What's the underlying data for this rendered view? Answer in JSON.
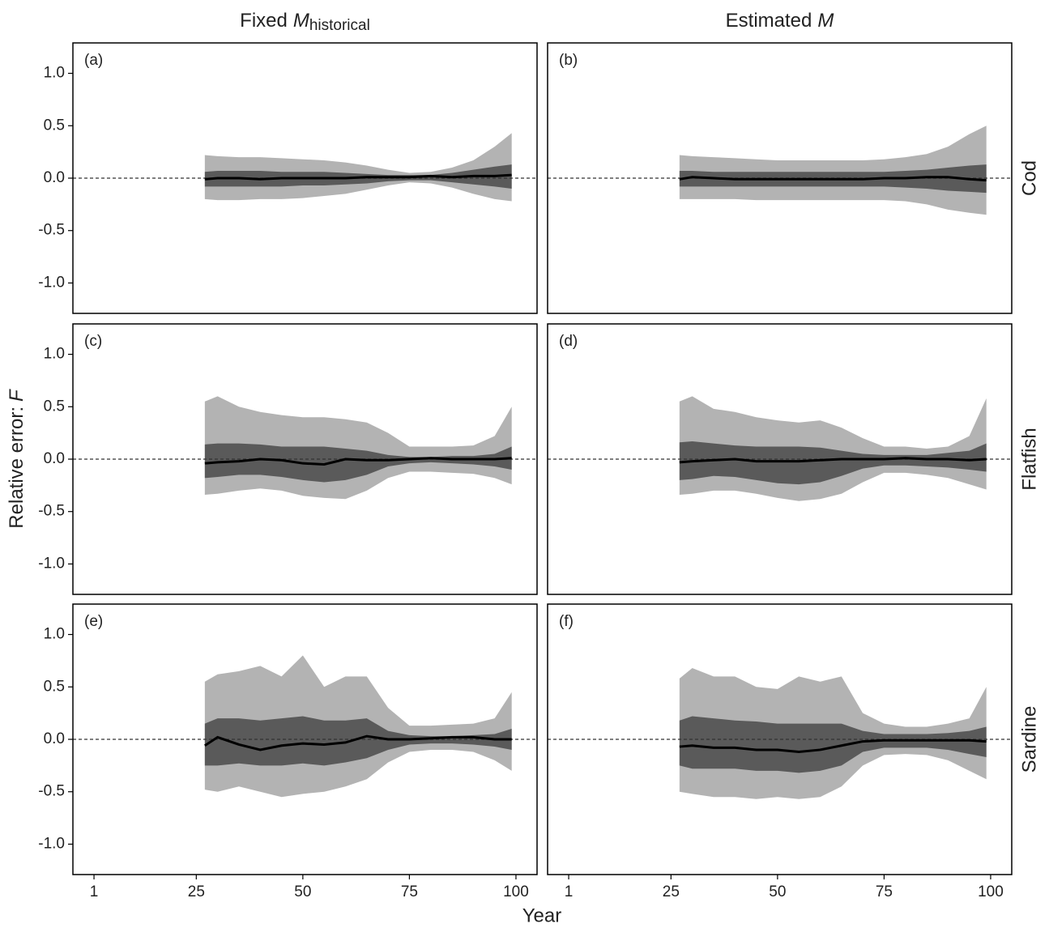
{
  "column_titles": [
    {
      "text": "Fixed",
      "var": "M",
      "sub": "historical"
    },
    {
      "text": "Estimated",
      "var": "M"
    }
  ],
  "row_labels": [
    "Cod",
    "Flatfish",
    "Sardine"
  ],
  "y_label": {
    "text": "Relative error:",
    "var": "F"
  },
  "x_label": "Year",
  "axes": {
    "xlim": [
      -3.95,
      104.95
    ],
    "xticks": [
      1,
      25,
      50,
      75,
      100
    ],
    "ylim": [
      -1.29,
      1.29
    ],
    "yticks": [
      {
        "value": -1,
        "label": "-1.0"
      },
      {
        "value": -0.5,
        "label": "-0.5"
      },
      {
        "value": 0,
        "label": "0.0"
      },
      {
        "value": 0.5,
        "label": "0.5"
      },
      {
        "value": 1,
        "label": "1.0"
      }
    ],
    "reference_line": 0
  },
  "chart_data": [
    {
      "type": "band",
      "label": "(a)",
      "x": [
        27,
        30,
        35,
        40,
        45,
        50,
        55,
        60,
        65,
        70,
        75,
        80,
        85,
        90,
        95,
        99
      ],
      "bands": [
        {
          "color": "#b3b3b3",
          "upper": [
            0.22,
            0.21,
            0.2,
            0.2,
            0.19,
            0.18,
            0.17,
            0.15,
            0.12,
            0.08,
            0.05,
            0.06,
            0.1,
            0.17,
            0.3,
            0.43
          ],
          "lower": [
            -0.2,
            -0.21,
            -0.21,
            -0.2,
            -0.2,
            -0.19,
            -0.17,
            -0.15,
            -0.11,
            -0.07,
            -0.04,
            -0.05,
            -0.09,
            -0.15,
            -0.2,
            -0.22
          ]
        },
        {
          "color": "#5a5a5a",
          "upper": [
            0.06,
            0.07,
            0.07,
            0.07,
            0.06,
            0.06,
            0.06,
            0.05,
            0.04,
            0.03,
            0.03,
            0.03,
            0.05,
            0.08,
            0.11,
            0.13
          ],
          "lower": [
            -0.08,
            -0.08,
            -0.08,
            -0.08,
            -0.08,
            -0.07,
            -0.07,
            -0.06,
            -0.05,
            -0.03,
            -0.02,
            -0.02,
            -0.04,
            -0.06,
            -0.08,
            -0.1
          ]
        }
      ],
      "line": {
        "color": "#000000",
        "values": [
          -0.01,
          0,
          0,
          -0.01,
          0,
          0,
          0,
          0,
          0.01,
          0.01,
          0.01,
          0.02,
          0.01,
          0.02,
          0.02,
          0.03
        ]
      }
    },
    {
      "type": "band",
      "label": "(b)",
      "x": [
        27,
        30,
        35,
        40,
        45,
        50,
        55,
        60,
        65,
        70,
        75,
        80,
        85,
        90,
        95,
        99
      ],
      "bands": [
        {
          "color": "#b3b3b3",
          "upper": [
            0.22,
            0.21,
            0.2,
            0.19,
            0.18,
            0.17,
            0.17,
            0.17,
            0.17,
            0.17,
            0.18,
            0.2,
            0.23,
            0.3,
            0.42,
            0.5
          ],
          "lower": [
            -0.2,
            -0.2,
            -0.2,
            -0.2,
            -0.21,
            -0.21,
            -0.21,
            -0.21,
            -0.21,
            -0.21,
            -0.21,
            -0.22,
            -0.25,
            -0.3,
            -0.33,
            -0.35
          ]
        },
        {
          "color": "#5a5a5a",
          "upper": [
            0.07,
            0.07,
            0.06,
            0.06,
            0.06,
            0.06,
            0.06,
            0.06,
            0.06,
            0.06,
            0.06,
            0.07,
            0.08,
            0.1,
            0.12,
            0.13
          ],
          "lower": [
            -0.08,
            -0.08,
            -0.08,
            -0.08,
            -0.08,
            -0.08,
            -0.08,
            -0.08,
            -0.08,
            -0.08,
            -0.08,
            -0.09,
            -0.1,
            -0.12,
            -0.13,
            -0.14
          ]
        }
      ],
      "line": {
        "color": "#000000",
        "values": [
          -0.01,
          0.01,
          0,
          -0.01,
          -0.01,
          -0.01,
          -0.01,
          -0.01,
          -0.01,
          -0.01,
          0,
          0,
          0.01,
          0.01,
          -0.01,
          -0.02
        ]
      }
    },
    {
      "type": "band",
      "label": "(c)",
      "x": [
        27,
        30,
        35,
        40,
        45,
        50,
        55,
        60,
        65,
        70,
        75,
        80,
        85,
        90,
        95,
        99
      ],
      "bands": [
        {
          "color": "#b3b3b3",
          "upper": [
            0.55,
            0.6,
            0.5,
            0.45,
            0.42,
            0.4,
            0.4,
            0.38,
            0.35,
            0.25,
            0.12,
            0.12,
            0.12,
            0.13,
            0.22,
            0.5
          ],
          "lower": [
            -0.34,
            -0.33,
            -0.3,
            -0.28,
            -0.3,
            -0.35,
            -0.37,
            -0.38,
            -0.3,
            -0.18,
            -0.12,
            -0.12,
            -0.13,
            -0.14,
            -0.18,
            -0.24
          ]
        },
        {
          "color": "#5a5a5a",
          "upper": [
            0.14,
            0.15,
            0.15,
            0.14,
            0.12,
            0.12,
            0.12,
            0.1,
            0.08,
            0.04,
            0.02,
            0.02,
            0.03,
            0.03,
            0.05,
            0.12
          ],
          "lower": [
            -0.18,
            -0.17,
            -0.15,
            -0.15,
            -0.17,
            -0.2,
            -0.22,
            -0.2,
            -0.15,
            -0.07,
            -0.04,
            -0.03,
            -0.04,
            -0.05,
            -0.07,
            -0.1
          ]
        }
      ],
      "line": {
        "color": "#000000",
        "values": [
          -0.04,
          -0.03,
          -0.02,
          0,
          -0.01,
          -0.04,
          -0.05,
          0,
          -0.01,
          -0.01,
          0,
          0.01,
          0,
          0,
          0,
          0.01
        ]
      }
    },
    {
      "type": "band",
      "label": "(d)",
      "x": [
        27,
        30,
        35,
        40,
        45,
        50,
        55,
        60,
        65,
        70,
        75,
        80,
        85,
        90,
        95,
        99
      ],
      "bands": [
        {
          "color": "#b3b3b3",
          "upper": [
            0.55,
            0.6,
            0.48,
            0.45,
            0.4,
            0.37,
            0.35,
            0.37,
            0.3,
            0.2,
            0.12,
            0.12,
            0.1,
            0.12,
            0.22,
            0.58
          ],
          "lower": [
            -0.34,
            -0.33,
            -0.3,
            -0.3,
            -0.33,
            -0.37,
            -0.4,
            -0.38,
            -0.33,
            -0.22,
            -0.13,
            -0.13,
            -0.15,
            -0.18,
            -0.24,
            -0.29
          ]
        },
        {
          "color": "#5a5a5a",
          "upper": [
            0.16,
            0.17,
            0.15,
            0.13,
            0.12,
            0.12,
            0.12,
            0.11,
            0.08,
            0.05,
            0.04,
            0.04,
            0.04,
            0.06,
            0.08,
            0.15
          ],
          "lower": [
            -0.2,
            -0.19,
            -0.16,
            -0.17,
            -0.2,
            -0.23,
            -0.24,
            -0.22,
            -0.16,
            -0.09,
            -0.06,
            -0.06,
            -0.07,
            -0.08,
            -0.1,
            -0.12
          ]
        }
      ],
      "line": {
        "color": "#000000",
        "values": [
          -0.03,
          -0.02,
          -0.01,
          0,
          -0.02,
          -0.02,
          -0.02,
          -0.01,
          0,
          0,
          0,
          0.01,
          0,
          0,
          -0.01,
          0
        ]
      }
    },
    {
      "type": "band",
      "label": "(e)",
      "x": [
        27,
        30,
        35,
        40,
        45,
        50,
        55,
        60,
        65,
        70,
        75,
        80,
        85,
        90,
        95,
        99
      ],
      "bands": [
        {
          "color": "#b3b3b3",
          "upper": [
            0.55,
            0.62,
            0.65,
            0.7,
            0.6,
            0.8,
            0.5,
            0.6,
            0.6,
            0.3,
            0.13,
            0.13,
            0.14,
            0.15,
            0.2,
            0.45
          ],
          "lower": [
            -0.48,
            -0.5,
            -0.45,
            -0.5,
            -0.55,
            -0.52,
            -0.5,
            -0.45,
            -0.38,
            -0.22,
            -0.12,
            -0.1,
            -0.1,
            -0.12,
            -0.2,
            -0.3
          ]
        },
        {
          "color": "#5a5a5a",
          "upper": [
            0.15,
            0.2,
            0.2,
            0.18,
            0.2,
            0.22,
            0.18,
            0.18,
            0.2,
            0.08,
            0.04,
            0.03,
            0.03,
            0.04,
            0.05,
            0.1
          ],
          "lower": [
            -0.25,
            -0.25,
            -0.23,
            -0.25,
            -0.25,
            -0.23,
            -0.25,
            -0.22,
            -0.18,
            -0.1,
            -0.05,
            -0.04,
            -0.04,
            -0.05,
            -0.07,
            -0.1
          ]
        }
      ],
      "line": {
        "color": "#000000",
        "values": [
          -0.06,
          0.02,
          -0.05,
          -0.1,
          -0.06,
          -0.04,
          -0.05,
          -0.03,
          0.03,
          0,
          0,
          0.01,
          0.02,
          0.02,
          0,
          0
        ]
      }
    },
    {
      "type": "band",
      "label": "(f)",
      "x": [
        27,
        30,
        35,
        40,
        45,
        50,
        55,
        60,
        65,
        70,
        75,
        80,
        85,
        90,
        95,
        99
      ],
      "bands": [
        {
          "color": "#b3b3b3",
          "upper": [
            0.58,
            0.68,
            0.6,
            0.6,
            0.5,
            0.48,
            0.6,
            0.55,
            0.6,
            0.25,
            0.15,
            0.12,
            0.12,
            0.15,
            0.2,
            0.5
          ],
          "lower": [
            -0.5,
            -0.52,
            -0.55,
            -0.55,
            -0.57,
            -0.55,
            -0.57,
            -0.55,
            -0.45,
            -0.25,
            -0.15,
            -0.14,
            -0.15,
            -0.2,
            -0.3,
            -0.38
          ]
        },
        {
          "color": "#5a5a5a",
          "upper": [
            0.18,
            0.22,
            0.2,
            0.18,
            0.17,
            0.15,
            0.15,
            0.15,
            0.15,
            0.08,
            0.05,
            0.05,
            0.05,
            0.06,
            0.08,
            0.12
          ],
          "lower": [
            -0.25,
            -0.28,
            -0.28,
            -0.28,
            -0.3,
            -0.3,
            -0.32,
            -0.3,
            -0.25,
            -0.12,
            -0.08,
            -0.08,
            -0.08,
            -0.1,
            -0.14,
            -0.17
          ]
        }
      ],
      "line": {
        "color": "#000000",
        "values": [
          -0.07,
          -0.06,
          -0.08,
          -0.08,
          -0.1,
          -0.1,
          -0.12,
          -0.1,
          -0.06,
          -0.02,
          -0.01,
          -0.01,
          -0.01,
          -0.01,
          -0.01,
          -0.02
        ]
      }
    }
  ]
}
